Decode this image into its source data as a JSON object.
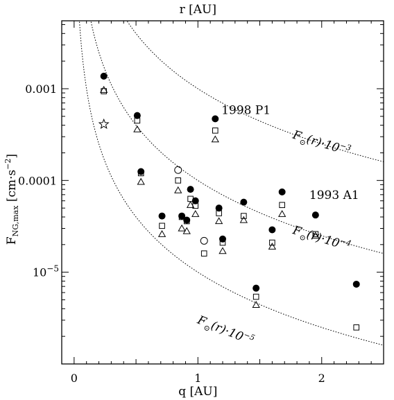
{
  "chart_data": {
    "type": "scatter",
    "title": "",
    "xlabel": "q [AU]",
    "top_xlabel": "r [AU]",
    "ylabel": "F_{NG,max} [cm·s^-2]",
    "xlim": [
      -0.1,
      2.5
    ],
    "ylim": [
      1e-06,
      0.0055
    ],
    "yscale": "log",
    "x_ticks": [
      {
        "value": 0,
        "label": "0"
      },
      {
        "value": 1,
        "label": "1"
      },
      {
        "value": 2,
        "label": "2"
      }
    ],
    "y_ticks": [
      {
        "value": 0.001,
        "label": "0.001"
      },
      {
        "value": 0.0001,
        "label": "0.0001"
      },
      {
        "value": 1e-05,
        "label": "10",
        "sup": "−5"
      }
    ],
    "grid": false,
    "legend": "none",
    "series": [
      {
        "marker": "filled-circle",
        "points": [
          [
            0.24,
            0.00137
          ],
          [
            0.51,
            0.00051
          ],
          [
            0.54,
            0.000125
          ],
          [
            0.71,
            4.1e-05
          ],
          [
            0.87,
            4.1e-05
          ],
          [
            0.91,
            3.7e-05
          ],
          [
            0.94,
            8e-05
          ],
          [
            0.98,
            6e-05
          ],
          [
            1.14,
            0.00047
          ],
          [
            1.17,
            5e-05
          ],
          [
            1.2,
            2.3e-05
          ],
          [
            1.37,
            5.8e-05
          ],
          [
            1.47,
            6.7e-06
          ],
          [
            1.6,
            2.9e-05
          ],
          [
            1.68,
            7.5e-05
          ],
          [
            1.95,
            4.2e-05
          ],
          [
            2.28,
            7.4e-06
          ]
        ]
      },
      {
        "marker": "open-square",
        "points": [
          [
            0.24,
            0.00094
          ],
          [
            0.51,
            0.00045
          ],
          [
            0.54,
            0.00012
          ],
          [
            0.71,
            3.2e-05
          ],
          [
            0.84,
            0.0001
          ],
          [
            0.87,
            4e-05
          ],
          [
            0.91,
            3.6e-05
          ],
          [
            0.94,
            6.3e-05
          ],
          [
            0.98,
            5.3e-05
          ],
          [
            1.05,
            1.6e-05
          ],
          [
            1.14,
            0.00035
          ],
          [
            1.17,
            4.4e-05
          ],
          [
            1.2,
            2.1e-05
          ],
          [
            1.37,
            4.1e-05
          ],
          [
            1.47,
            5.4e-06
          ],
          [
            1.6,
            2.1e-05
          ],
          [
            1.68,
            5.4e-05
          ],
          [
            1.95,
            2.6e-05
          ],
          [
            2.28,
            2.5e-06
          ]
        ]
      },
      {
        "marker": "open-triangle",
        "points": [
          [
            0.24,
            0.00097
          ],
          [
            0.51,
            0.00036
          ],
          [
            0.54,
            9.65e-05
          ],
          [
            0.71,
            2.6e-05
          ],
          [
            0.84,
            7.8e-05
          ],
          [
            0.87,
            3e-05
          ],
          [
            0.91,
            2.8e-05
          ],
          [
            0.94,
            5.4e-05
          ],
          [
            0.98,
            4.3e-05
          ],
          [
            1.14,
            0.00028
          ],
          [
            1.17,
            3.6e-05
          ],
          [
            1.2,
            1.7e-05
          ],
          [
            1.37,
            3.7e-05
          ],
          [
            1.47,
            4.4e-06
          ],
          [
            1.6,
            1.9e-05
          ],
          [
            1.68,
            4.3e-05
          ],
          [
            1.95,
            2.5e-05
          ]
        ]
      },
      {
        "marker": "open-circle",
        "points": [
          [
            0.84,
            0.00013
          ],
          [
            1.05,
            2.2e-05
          ]
        ]
      },
      {
        "marker": "open-star",
        "points": [
          [
            0.24,
            0.00041
          ]
        ]
      }
    ],
    "curves": [
      {
        "coefficient": 0.001,
        "label_base": "F",
        "label_sub": "⊙",
        "label_rest": "(r)·10",
        "label_exp": "−3"
      },
      {
        "coefficient": 0.0001,
        "label_base": "F",
        "label_sub": "⊙",
        "label_rest": "(r)·10",
        "label_exp": "−4"
      },
      {
        "coefficient": 1e-05,
        "label_base": "F",
        "label_sub": "⊙",
        "label_rest": "(r)·10",
        "label_exp": "−5"
      }
    ],
    "annotations": [
      {
        "text": "1998 P1",
        "x": 1.19,
        "y": 0.00053
      },
      {
        "text": "1993 A1",
        "x": 1.9,
        "y": 6.3e-05
      }
    ]
  }
}
